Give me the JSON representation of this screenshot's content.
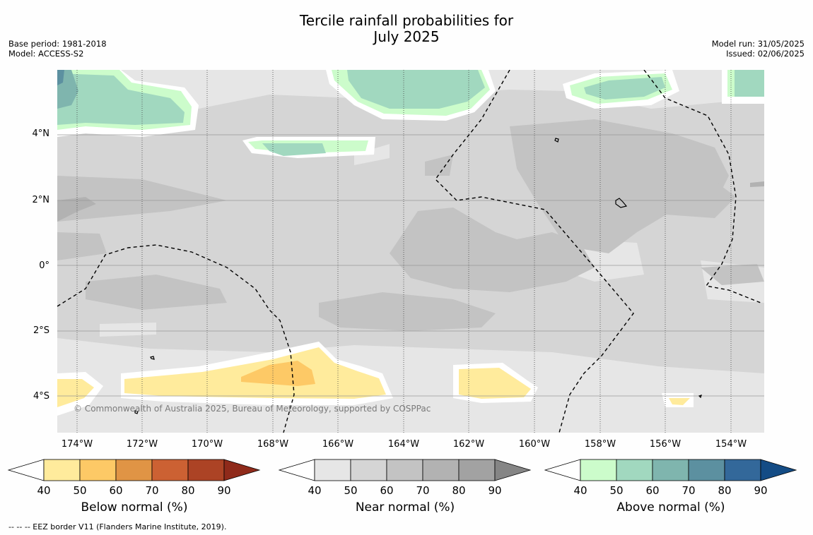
{
  "title_line1": "Tercile rainfall probabilities for",
  "title_line2": "July 2025",
  "meta": {
    "base_period": "Base period: 1981-2018",
    "model": "Model: ACCESS-S2",
    "model_run": "Model run: 31/05/2025",
    "issued": "Issued: 02/06/2025"
  },
  "map": {
    "y_labels": [
      "4°N",
      "2°N",
      "0°",
      "2°S",
      "4°S"
    ],
    "x_labels": [
      "174°W",
      "172°W",
      "170°W",
      "168°W",
      "166°W",
      "164°W",
      "162°W",
      "160°W",
      "158°W",
      "156°W",
      "154°W"
    ],
    "copyright": "© Commonwealth of Australia 2025, Bureau of Meteorology, supported by COSPPac"
  },
  "colorbars": [
    {
      "label": "Below normal (%)",
      "ticks": [
        "40",
        "50",
        "60",
        "70",
        "80",
        "90"
      ],
      "colors": [
        "#ffffff",
        "#ffeb9c",
        "#fdc966",
        "#e09445",
        "#cc6133",
        "#ac4325",
        "#8f2a1a"
      ]
    },
    {
      "label": "Near normal (%)",
      "ticks": [
        "40",
        "50",
        "60",
        "70",
        "80",
        "90"
      ],
      "colors": [
        "#ffffff",
        "#e6e6e6",
        "#d5d5d5",
        "#c3c3c3",
        "#b2b2b2",
        "#a2a2a2",
        "#858585"
      ]
    },
    {
      "label": "Above normal (%)",
      "ticks": [
        "40",
        "50",
        "60",
        "70",
        "80",
        "90"
      ],
      "colors": [
        "#ffffff",
        "#ccfccb",
        "#a1d8bf",
        "#7fb5ae",
        "#5c90a0",
        "#33689a",
        "#144c85"
      ]
    }
  ],
  "footnote": "-- -- -- EEZ border V11 (Flanders Marine Institute, 2019)."
}
